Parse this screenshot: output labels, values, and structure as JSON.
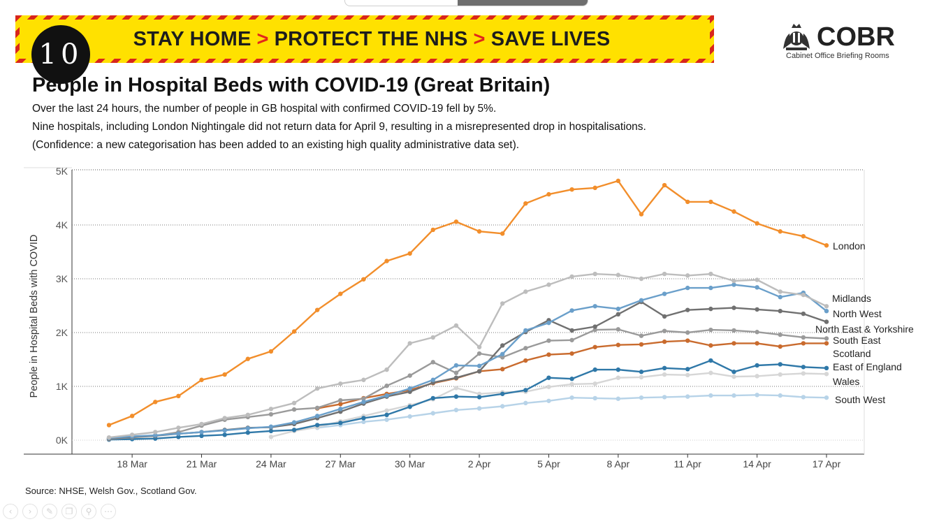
{
  "banner": {
    "parts": [
      "STAY HOME",
      "PROTECT THE NHS",
      "SAVE LIVES"
    ],
    "separator": ">",
    "colors": {
      "yellow": "#ffe100",
      "red": "#e2261b"
    }
  },
  "slide_number": "10",
  "logo": {
    "name": "COBR",
    "subtitle": "Cabinet Office Briefing Rooms"
  },
  "title": "People in Hospital Beds with COVID-19 (Great Britain)",
  "description": [
    "Over the last 24 hours, the number of people in GB hospital with confirmed COVID-19 fell by 5%.",
    "Nine hospitals, including London Nightingale did not return data for April 9, resulting in a misrepresented drop in hospitalisations.",
    "(Confidence: a new categorisation has been added to an existing high quality administrative data set)."
  ],
  "source": "Source: NHSE, Welsh Gov., Scotland Gov.",
  "controls": [
    "prev-icon",
    "next-icon",
    "pen-icon",
    "copy-icon",
    "zoom-icon",
    "more-icon"
  ],
  "chart_data": {
    "type": "line",
    "ylabel": "People in Hospital Beds with COVID",
    "ylim": [
      0,
      5000
    ],
    "yticks": [
      0,
      1000,
      2000,
      3000,
      4000,
      5000
    ],
    "ytick_labels": [
      "0K",
      "1K",
      "2K",
      "3K",
      "4K",
      "5K"
    ],
    "xticks": [
      "18 Mar",
      "21 Mar",
      "24 Mar",
      "27 Mar",
      "30 Mar",
      "2 Apr",
      "5 Apr",
      "8 Apr",
      "11 Apr",
      "14 Apr",
      "17 Apr"
    ],
    "x": [
      "17 Mar",
      "18 Mar",
      "19 Mar",
      "20 Mar",
      "21 Mar",
      "22 Mar",
      "23 Mar",
      "24 Mar",
      "25 Mar",
      "26 Mar",
      "27 Mar",
      "28 Mar",
      "29 Mar",
      "30 Mar",
      "31 Mar",
      "1 Apr",
      "2 Apr",
      "3 Apr",
      "4 Apr",
      "5 Apr",
      "6 Apr",
      "7 Apr",
      "8 Apr",
      "9 Apr",
      "10 Apr",
      "11 Apr",
      "12 Apr",
      "13 Apr",
      "14 Apr",
      "15 Apr",
      "16 Apr",
      "17 Apr"
    ],
    "series": [
      {
        "name": "London",
        "color": "#f28e2b",
        "values": [
          280,
          450,
          710,
          820,
          1120,
          1220,
          1510,
          1650,
          2020,
          2420,
          2720,
          2990,
          3330,
          3470,
          3910,
          4060,
          3880,
          3840,
          4400,
          4570,
          4660,
          4690,
          4820,
          4200,
          4740,
          4430,
          4430,
          4250,
          4030,
          3880,
          3790,
          3620
        ]
      },
      {
        "name": "Midlands",
        "color": "#bdbdbd",
        "values": [
          50,
          100,
          150,
          230,
          300,
          410,
          470,
          580,
          690,
          960,
          1050,
          1120,
          1310,
          1800,
          1910,
          2130,
          1730,
          2540,
          2760,
          2890,
          3040,
          3090,
          3070,
          3000,
          3090,
          3060,
          3090,
          2960,
          2980,
          2760,
          2700,
          2490
        ]
      },
      {
        "name": "North West",
        "color": "#6a9fca",
        "values": [
          40,
          70,
          90,
          120,
          150,
          180,
          220,
          250,
          330,
          450,
          580,
          710,
          830,
          960,
          1120,
          1390,
          1380,
          1600,
          2040,
          2180,
          2410,
          2490,
          2440,
          2600,
          2720,
          2830,
          2830,
          2890,
          2840,
          2660,
          2740,
          2400
        ]
      },
      {
        "name": "North East & Yorkshire",
        "color": "#707070",
        "values": [
          30,
          60,
          80,
          120,
          150,
          190,
          230,
          240,
          300,
          410,
          530,
          680,
          810,
          900,
          1070,
          1160,
          1280,
          1760,
          2010,
          2230,
          2040,
          2110,
          2340,
          2570,
          2300,
          2420,
          2440,
          2460,
          2430,
          2400,
          2350,
          2200
        ]
      },
      {
        "name": "South East",
        "color": "#9a9a9a",
        "values": [
          20,
          50,
          80,
          150,
          270,
          380,
          430,
          480,
          570,
          600,
          740,
          770,
          1010,
          1200,
          1450,
          1250,
          1610,
          1540,
          1710,
          1850,
          1860,
          2050,
          2060,
          1940,
          2030,
          2000,
          2050,
          2040,
          2010,
          1960,
          1910,
          1890
        ]
      },
      {
        "name": "Scotland",
        "color": "#c96b2e",
        "values": [
          null,
          null,
          null,
          null,
          null,
          null,
          null,
          null,
          null,
          590,
          670,
          780,
          860,
          930,
          1060,
          1150,
          1280,
          1320,
          1480,
          1590,
          1610,
          1730,
          1770,
          1780,
          1830,
          1850,
          1760,
          1800,
          1800,
          1740,
          1800,
          1800
        ]
      },
      {
        "name": "East of England",
        "color": "#2f78a8",
        "values": [
          10,
          20,
          30,
          60,
          80,
          100,
          140,
          170,
          190,
          280,
          320,
          410,
          470,
          620,
          780,
          810,
          800,
          860,
          930,
          1160,
          1140,
          1310,
          1310,
          1270,
          1340,
          1320,
          1480,
          1270,
          1390,
          1410,
          1360,
          1340
        ]
      },
      {
        "name": "Wales",
        "color": "#d6d6d6",
        "values": [
          null,
          null,
          null,
          null,
          null,
          null,
          null,
          60,
          170,
          240,
          350,
          450,
          550,
          650,
          760,
          970,
          860,
          890,
          900,
          990,
          1040,
          1050,
          1160,
          1170,
          1220,
          1210,
          1250,
          1180,
          1190,
          1220,
          1240,
          1230
        ]
      },
      {
        "name": "South West",
        "color": "#b7d3e8",
        "values": [
          null,
          null,
          null,
          null,
          null,
          null,
          null,
          null,
          null,
          230,
          280,
          340,
          380,
          440,
          500,
          560,
          590,
          630,
          690,
          730,
          790,
          780,
          770,
          790,
          800,
          810,
          830,
          830,
          840,
          830,
          800,
          790
        ]
      }
    ]
  }
}
